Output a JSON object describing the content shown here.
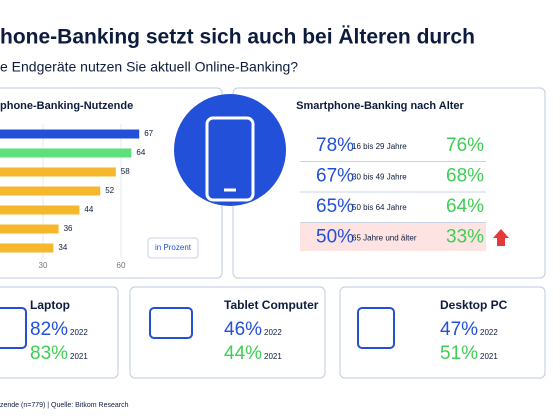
{
  "header": {
    "title": "hone-Banking setzt sich auch bei Älteren durch",
    "subtitle": "e Endgeräte nutzen Sie aktuell Online-Banking?"
  },
  "chart_data": {
    "type": "bar",
    "orientation": "horizontal",
    "title": "phone-Banking-Nutzende",
    "values": [
      67,
      64,
      58,
      52,
      44,
      36,
      34
    ],
    "colors": [
      "#2350d8",
      "#5ee07a",
      "#f5b72c",
      "#f5b72c",
      "#f5b72c",
      "#f5b72c",
      "#f5b72c"
    ],
    "xlim": [
      0,
      70
    ],
    "xticks": [
      30,
      60
    ],
    "note": "in Prozent"
  },
  "age_panel": {
    "title": "Smartphone-Banking nach Alter",
    "rows": [
      [
        "78%",
        "16 bis 29 Jahre",
        "76%"
      ],
      [
        "67%",
        "30 bis 49 Jahre",
        "68%"
      ],
      [
        "65%",
        "50 bis 64 Jahre",
        "64%"
      ],
      [
        "50%",
        "65 Jahre und älter",
        "33%"
      ]
    ]
  },
  "devices": [
    {
      "name": "Laptop",
      "v2022": "82%",
      "y2022": "2022",
      "v2021": "83%",
      "y2021": "2021"
    },
    {
      "name": "Tablet Computer",
      "v2022": "46%",
      "y2022": "2022",
      "v2021": "44%",
      "y2021": "2021"
    },
    {
      "name": "Desktop PC",
      "v2022": "47%",
      "y2022": "2022",
      "v2021": "51%",
      "y2021": "2021"
    }
  ],
  "footer": "zende (n=779) | Quelle: Bitkom Research"
}
